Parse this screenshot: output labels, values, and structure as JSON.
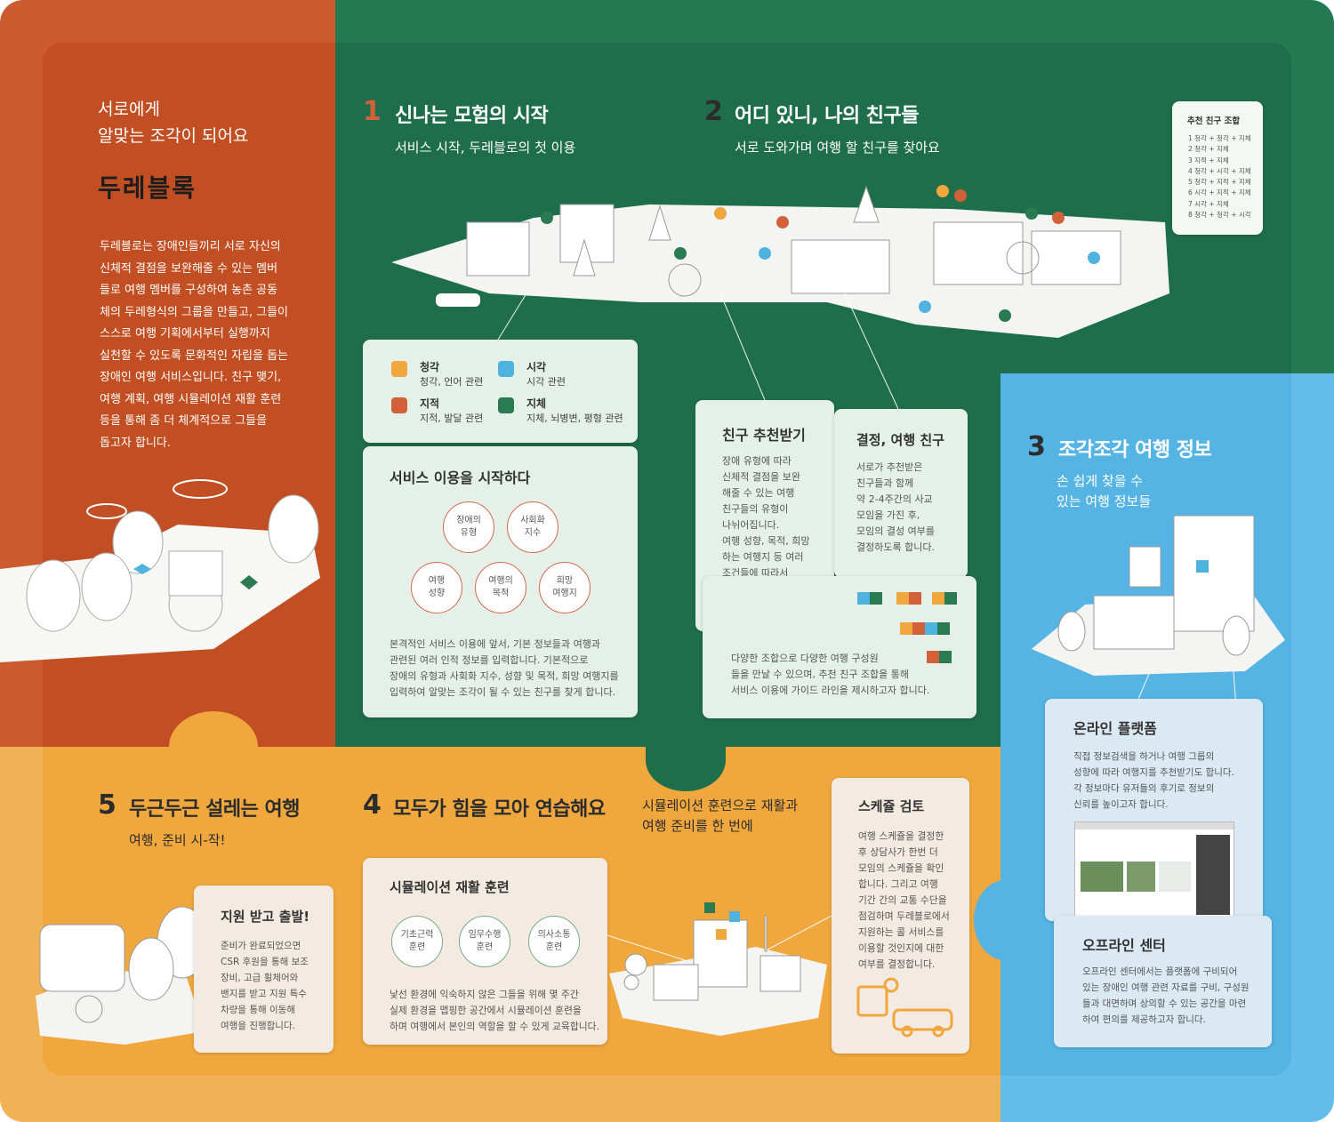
{
  "intro": {
    "heading": "서로에게\n알맞는 조각이 되어요",
    "logo_text": "두레블록",
    "body": "두레블로는 장애인들끼리 서로 자신의\n신체적 결점을 보완해줄 수 있는 멤버\n들로 여행 멤버를 구성하여 농촌 공동\n체의 두레형식의 그룹을 만들고, 그들이\n스스로 여행 기획에서부터 실행까지\n실천할 수 있도록 문화적인 자립을 돕는\n장애인 여행 서비스입니다. 친구 맺기,\n여행 계획, 여행 시뮬레이션 재활 훈련\n등을 통해 좀 더 체계적으로 그들을\n돕고자 합니다."
  },
  "step1": {
    "num": "1",
    "title": "신나는 모험의 시작",
    "subtitle": "서비스 시작, 두레블로의 첫 이용",
    "legend": [
      {
        "name": "청각",
        "desc": "청각, 언어 관련",
        "color": "#f0a83e"
      },
      {
        "name": "시각",
        "desc": "시각 관련",
        "color": "#4fb3e0"
      },
      {
        "name": "지적",
        "desc": "지적, 발달 관련",
        "color": "#d2613a"
      },
      {
        "name": "지체",
        "desc": "지체, 뇌병변, 평형 관련",
        "color": "#2a7a52"
      }
    ],
    "box_title": "서비스 이용을 시작하다",
    "circles": [
      "장애의\n유형",
      "사회화\n지수",
      "여행\n성향",
      "여행의\n목적",
      "희망\n여행지"
    ],
    "box_body": "본격적인 서비스 이용에 앞서, 기본 정보들과 여행과\n관련된 여러 인적 정보를 입력합니다. 기본적으로\n장애의 유형과 사회화 지수, 성향 및 목적, 희망 여행지를\n입력하여 알맞는 조각이 될 수 있는 친구를 찾게 합니다."
  },
  "step2": {
    "num": "2",
    "title": "어디 있니, 나의 친구들",
    "subtitle": "서로 도와가며 여행 할 친구를 찾아요",
    "combo_title": "추천 친구 조합",
    "combos": [
      "1  청각 + 청각 + 지체",
      "2  청각 + 지체",
      "3  지적 + 지체",
      "4  청각 + 시각 + 지체",
      "5  청각 + 지적 + 지체",
      "6  시각 + 지적 + 지체",
      "7  시각 + 지체",
      "8  청각 + 청각 + 시각"
    ],
    "box_a_title": "친구 추천받기",
    "box_a_body": "장애 유형에 따라\n신체적 결점을 보완\n해줄 수 있는 여행\n친구들의 유형이\n나뉘어집니다.\n여행 성향, 목적, 희망\n하는 여행지 등 여러\n조건들에 따라서\n알맞는 친구들을\n추천받게 됩니다.",
    "box_b_title": "결정, 여행 친구",
    "box_b_body": "서로가 추천받은\n친구들과 함께\n약 2-4주간의 사교\n모임을 가진 후,\n모임의 결성 여부를\n결정하도록 합니다.",
    "box_c_body": "다양한 조합으로 다양한 여행 구성원\n들을 만날 수 있으며, 추천 친구 조합을 통해\n서비스 이용에 가이드 라인을 제시하고자 합니다."
  },
  "step3": {
    "num": "3",
    "title": "조각조각 여행 정보",
    "subtitle": "손 쉽게 찾을 수\n있는 여행 정보들",
    "online_title": "온라인 플랫폼",
    "online_body": "직접 정보검색을 하거나 여행 그룹의\n성향에 따라 여행지를 추천받기도 합니다.\n각 정보마다 유저들의 후기로 정보의\n신뢰를 높이고자 합니다.",
    "offline_title": "오프라인 센터",
    "offline_body": "오프라인 센터에서는 플랫폼에 구비되어\n있는 장애인 여행 관련 자료를 구비, 구성원\n들과 대면하며 상의할 수 있는 공간을 마련\n하여 편의를 제공하고자 합니다."
  },
  "step4": {
    "num": "4",
    "title": "모두가 힘을 모아 연습해요",
    "subtitle": "시뮬레이션 훈련으로 재활과\n여행 준비를 한 번에",
    "box_title": "시뮬레이션 재활 훈련",
    "circles": [
      "기초근력\n훈련",
      "임무수행\n훈련",
      "의사소통\n훈련"
    ],
    "box_body": "낯선 환경에 익숙하지 않은 그들을 위해 몇 주간\n실제 환경을 맵핑한 공간에서 시뮬레이션 훈련을\n하며 여행에서 본인의 역할을 할 수 있게 교육합니다.",
    "sched_title": "스케쥴 검토",
    "sched_body": "여행 스케쥴을 결정한\n후 상담사가 한번 더\n모임의 스케쥴을 확인\n합니다. 그리고 여행\n기간 간의 교통 수단을\n점검하며 두레블로에서\n지원하는 콜 서비스를\n이용할 것인지에 대한\n여부를 결정합니다."
  },
  "step5": {
    "num": "5",
    "title": "두근두근 설레는 여행",
    "subtitle": "여행, 준비 시-작!",
    "box_title": "지원 받고 출발!",
    "box_body": "준비가 완료되었으면\nCSR 후원을 통해 보조\n장비, 고급 휠체어와\n밴지를 받고 지원 특수\n차량을 통해 이동해\n여행을 진행합니다."
  }
}
